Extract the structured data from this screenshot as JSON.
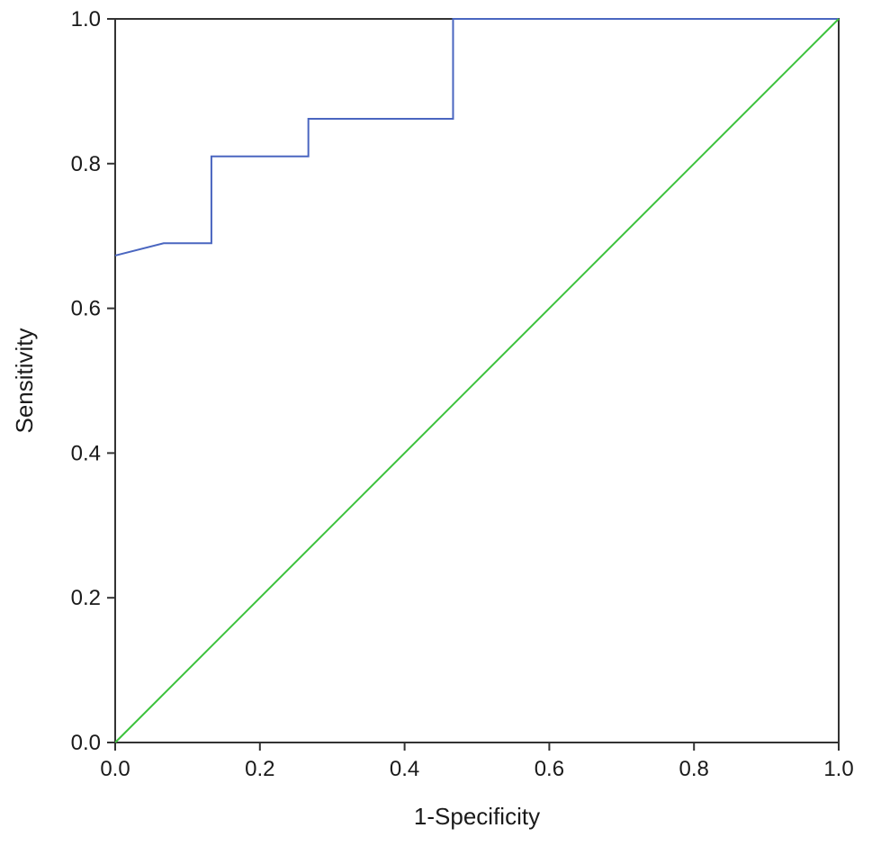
{
  "chart_data": {
    "type": "line",
    "title": "",
    "xlabel": "1-Specificity",
    "ylabel": "Sensitivity",
    "xlim": [
      0.0,
      1.0
    ],
    "ylim": [
      0.0,
      1.0
    ],
    "x_ticks": [
      "0.0",
      "0.2",
      "0.4",
      "0.6",
      "0.8",
      "1.0"
    ],
    "y_ticks": [
      "0.0",
      "0.2",
      "0.4",
      "0.6",
      "0.8",
      "1.0"
    ],
    "grid": false,
    "legend": "none",
    "series": [
      {
        "color": "#4a66c0",
        "style": "step",
        "points": [
          [
            0.0,
            0.673
          ],
          [
            0.067,
            0.69
          ],
          [
            0.133,
            0.69
          ],
          [
            0.133,
            0.81
          ],
          [
            0.267,
            0.81
          ],
          [
            0.267,
            0.862
          ],
          [
            0.467,
            0.862
          ],
          [
            0.467,
            1.0
          ],
          [
            1.0,
            1.0
          ]
        ]
      },
      {
        "color": "#3cc23c",
        "style": "reference",
        "points": [
          [
            0.0,
            0.0
          ],
          [
            1.0,
            1.0
          ]
        ]
      }
    ]
  }
}
